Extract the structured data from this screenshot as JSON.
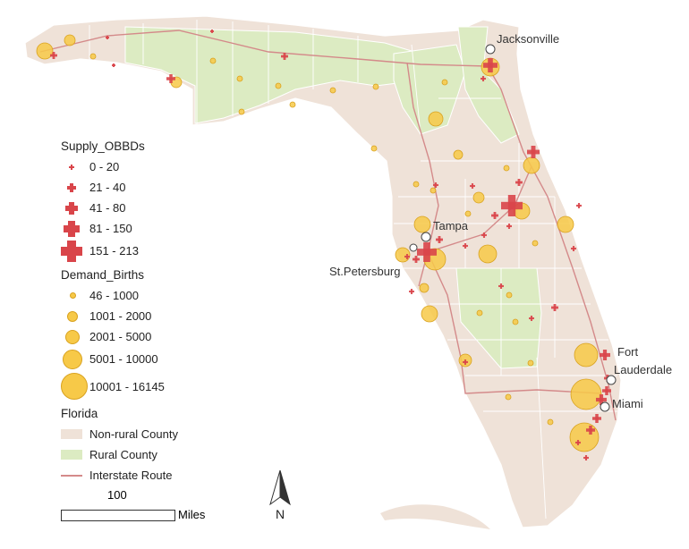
{
  "legend": {
    "supply_title": "Supply_OBBDs",
    "supply_items": [
      "0 - 20",
      "21 - 40",
      "41 - 80",
      "81 - 150",
      "151 - 213"
    ],
    "demand_title": "Demand_Births",
    "demand_items": [
      "46 - 1000",
      "1001 - 2000",
      "2001 - 5000",
      "5001 - 10000",
      "10001 - 16145"
    ],
    "florida_title": "Florida",
    "florida_items": [
      "Non-rural County",
      "Rural County",
      "Interstate Route"
    ]
  },
  "cities": {
    "jacksonville": "Jacksonville",
    "tampa": "Tampa",
    "st_petersburg": "St.Petersburg",
    "fort": "Fort",
    "lauderdale": "Lauderdale",
    "miami": "Miami"
  },
  "scale_bar": {
    "value": "100",
    "unit": "Miles"
  },
  "north_arrow": {
    "label": "N"
  },
  "colors": {
    "non_rural": "#efe2d8",
    "rural": "#dcebc2",
    "interstate": "#d48a8a",
    "supply": "#d9454a",
    "demand": "#f7c948"
  }
}
